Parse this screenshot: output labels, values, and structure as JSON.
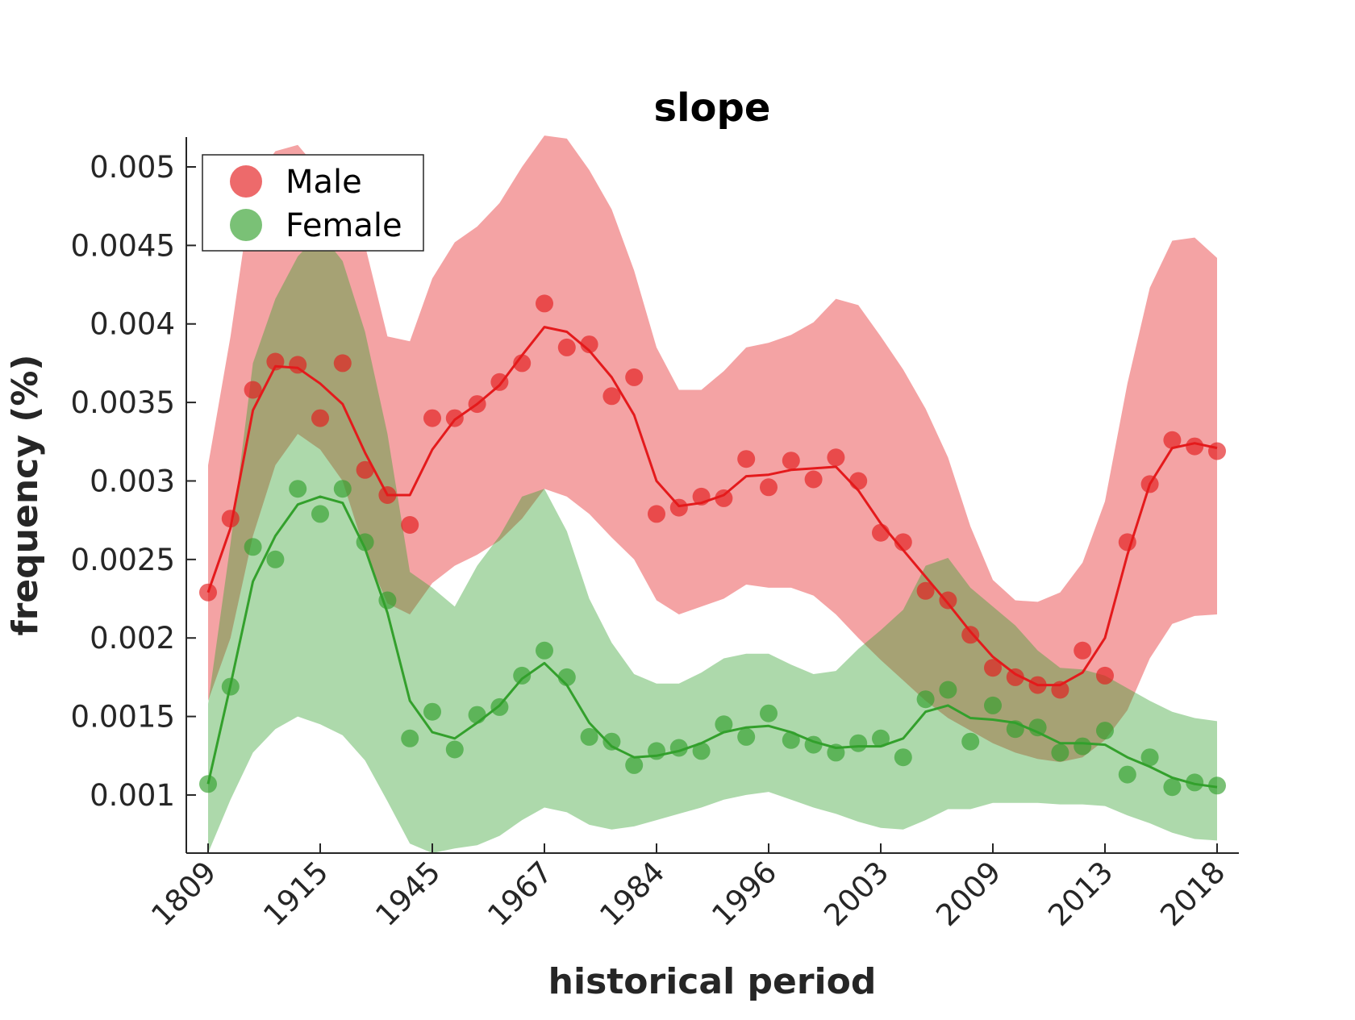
{
  "chart_data": {
    "type": "line",
    "title": "slope",
    "xlabel": "historical period",
    "ylabel": "frequency (%)",
    "x_tick_labels": [
      "1809",
      "1915",
      "1945",
      "1967",
      "1984",
      "1996",
      "2003",
      "2009",
      "2013",
      "2018"
    ],
    "ylim": [
      0.00063,
      0.00519
    ],
    "y_ticks": [
      0.001,
      0.0015,
      0.002,
      0.0025,
      0.003,
      0.0035,
      0.004,
      0.0045,
      0.005
    ],
    "y_tick_labels": [
      "0.001",
      "0.0015",
      "0.002",
      "0.0025",
      "0.003",
      "0.0035",
      "0.004",
      "0.0045",
      "0.005"
    ],
    "legend_position": "top-left",
    "grid": false,
    "series": [
      {
        "name": "Male",
        "color": "#e41a1c",
        "band_color": "#f4a3a4",
        "points": [
          0.00229,
          0.00276,
          0.00358,
          0.00376,
          0.00374,
          0.0034,
          0.00375,
          0.00307,
          0.00291,
          0.00272,
          0.0034,
          0.0034,
          0.00349,
          0.00363,
          0.00375,
          0.00413,
          0.00385,
          0.00387,
          0.00354,
          0.00366,
          0.00279,
          0.00283,
          0.0029,
          0.00289,
          0.00314,
          0.00296,
          0.00313,
          0.00301,
          0.00315,
          0.003,
          0.00267,
          0.00261,
          0.0023,
          0.00224,
          0.00202,
          0.00181,
          0.00175,
          0.0017,
          0.00167,
          0.00192,
          0.00176,
          0.00261,
          0.00298,
          0.00326,
          0.00322,
          0.00319
        ],
        "mean": [
          0.00229,
          0.0027,
          0.00345,
          0.00373,
          0.00372,
          0.00362,
          0.00349,
          0.00318,
          0.00291,
          0.00291,
          0.0032,
          0.00339,
          0.00349,
          0.00361,
          0.0038,
          0.00398,
          0.00395,
          0.00383,
          0.00366,
          0.00342,
          0.003,
          0.00284,
          0.00286,
          0.00291,
          0.00303,
          0.00304,
          0.00307,
          0.00308,
          0.00309,
          0.00294,
          0.00273,
          0.00256,
          0.00239,
          0.00222,
          0.00204,
          0.00188,
          0.00177,
          0.0017,
          0.0017,
          0.00178,
          0.002,
          0.00253,
          0.00298,
          0.00321,
          0.00324,
          0.00321
        ],
        "band_upper": [
          0.0031,
          0.00392,
          0.0049,
          0.0051,
          0.00514,
          0.00497,
          0.00482,
          0.0045,
          0.00392,
          0.00389,
          0.00429,
          0.00452,
          0.00462,
          0.00477,
          0.005,
          0.0052,
          0.00518,
          0.00498,
          0.00473,
          0.00434,
          0.00385,
          0.00358,
          0.00358,
          0.0037,
          0.00385,
          0.00388,
          0.00393,
          0.00401,
          0.00416,
          0.00412,
          0.00392,
          0.00371,
          0.00346,
          0.00315,
          0.00271,
          0.00237,
          0.00224,
          0.00223,
          0.00229,
          0.00248,
          0.00287,
          0.00362,
          0.00423,
          0.00453,
          0.00455,
          0.00442
        ],
        "band_lower": [
          0.0016,
          0.002,
          0.00265,
          0.0031,
          0.0033,
          0.0032,
          0.003,
          0.00255,
          0.00222,
          0.00215,
          0.00235,
          0.00246,
          0.00253,
          0.00262,
          0.00276,
          0.00295,
          0.0029,
          0.00279,
          0.00264,
          0.0025,
          0.00224,
          0.00215,
          0.0022,
          0.00225,
          0.00234,
          0.00232,
          0.00232,
          0.00227,
          0.00215,
          0.002,
          0.00186,
          0.00173,
          0.0016,
          0.00149,
          0.00141,
          0.00133,
          0.00127,
          0.00123,
          0.00121,
          0.00124,
          0.00135,
          0.00154,
          0.00187,
          0.00209,
          0.00214,
          0.00215
        ]
      },
      {
        "name": "Female",
        "color": "#33a02c",
        "band_color": "#a8d8a0",
        "points": [
          0.00107,
          0.00169,
          0.00258,
          0.0025,
          0.00295,
          0.00279,
          0.00295,
          0.00261,
          0.00224,
          0.00136,
          0.00153,
          0.00129,
          0.00151,
          0.00156,
          0.00176,
          0.00192,
          0.00175,
          0.00137,
          0.00134,
          0.00119,
          0.00128,
          0.0013,
          0.00128,
          0.00145,
          0.00137,
          0.00152,
          0.00135,
          0.00132,
          0.00127,
          0.00133,
          0.00136,
          0.00124,
          0.00161,
          0.00167,
          0.00134,
          0.00157,
          0.00142,
          0.00143,
          0.00127,
          0.00131,
          0.00141,
          0.00113,
          0.00124,
          0.00105,
          0.00108,
          0.00106
        ],
        "mean": [
          0.00107,
          0.0017,
          0.00236,
          0.00265,
          0.00285,
          0.0029,
          0.00286,
          0.00257,
          0.00216,
          0.0016,
          0.0014,
          0.00136,
          0.00146,
          0.00157,
          0.00174,
          0.00184,
          0.0017,
          0.00146,
          0.00131,
          0.00124,
          0.00125,
          0.00128,
          0.00133,
          0.0014,
          0.00143,
          0.00144,
          0.0014,
          0.00134,
          0.0013,
          0.00131,
          0.00131,
          0.00136,
          0.00153,
          0.00157,
          0.00149,
          0.00148,
          0.00146,
          0.0014,
          0.00133,
          0.00133,
          0.00132,
          0.00124,
          0.00118,
          0.00111,
          0.00107,
          0.00105
        ],
        "band_upper": [
          0.00158,
          0.0026,
          0.00375,
          0.00416,
          0.00443,
          0.00458,
          0.0044,
          0.00395,
          0.0033,
          0.00242,
          0.00232,
          0.0022,
          0.00246,
          0.00265,
          0.0029,
          0.00295,
          0.00268,
          0.00225,
          0.00197,
          0.00177,
          0.00171,
          0.00171,
          0.00178,
          0.00187,
          0.0019,
          0.0019,
          0.00183,
          0.00177,
          0.00179,
          0.00193,
          0.00205,
          0.00218,
          0.00246,
          0.00251,
          0.00232,
          0.0022,
          0.00208,
          0.00192,
          0.00181,
          0.0018,
          0.00176,
          0.00168,
          0.0016,
          0.00153,
          0.00149,
          0.00147
        ],
        "band_lower": [
          0.00063,
          0.00097,
          0.00127,
          0.00142,
          0.0015,
          0.00145,
          0.00138,
          0.00122,
          0.00096,
          0.00069,
          0.00063,
          0.00066,
          0.00068,
          0.00074,
          0.00084,
          0.00092,
          0.00089,
          0.00081,
          0.00078,
          0.0008,
          0.00084,
          0.00088,
          0.00092,
          0.00097,
          0.001,
          0.00102,
          0.00097,
          0.00092,
          0.00088,
          0.00083,
          0.00079,
          0.00078,
          0.00084,
          0.00091,
          0.00091,
          0.00095,
          0.00095,
          0.00095,
          0.00094,
          0.00094,
          0.00093,
          0.00087,
          0.00082,
          0.00076,
          0.00072,
          0.00071
        ]
      }
    ]
  }
}
